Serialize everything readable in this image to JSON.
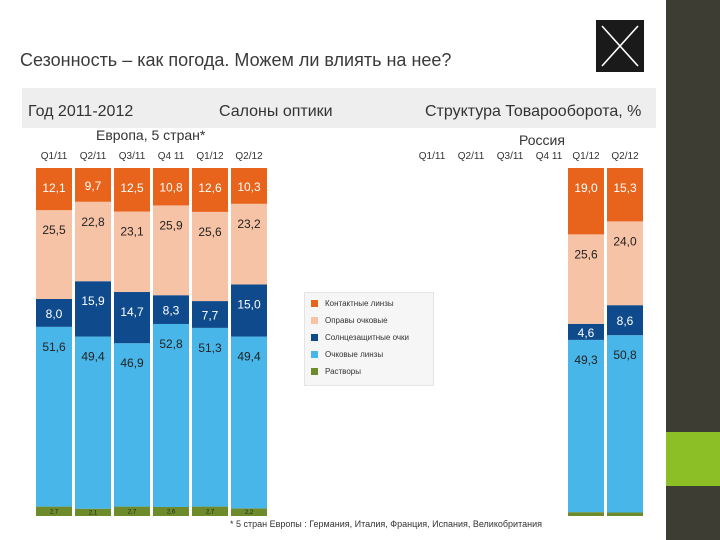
{
  "title": "Сезонность – как погода. Можем ли влиять на нее?",
  "header": {
    "left": "Год 2011-2012",
    "center": "Салоны оптики",
    "right": "Структура Товарооборота, %"
  },
  "colors": {
    "contact": "#e8641c",
    "frames": "#f7c3a6",
    "sun": "#0f4b8c",
    "lenses": "#49b6ea",
    "solutions": "#6d8b2a",
    "side_bar": "#3d3d33",
    "accent": "#8cbf26"
  },
  "legend": [
    {
      "key": "contact",
      "label": "Контактные линзы"
    },
    {
      "key": "frames",
      "label": "Оправы очковые"
    },
    {
      "key": "sun",
      "label": "Солнцезащитные очки"
    },
    {
      "key": "lenses",
      "label": "Очковые линзы"
    },
    {
      "key": "solutions",
      "label": "Растворы"
    }
  ],
  "footnote": "* 5 стран Европы : Германия, Италия, Франция, Испания, Великобритания",
  "chart_data": [
    {
      "type": "bar",
      "stacked": true,
      "title": "Европа, 5 стран*",
      "categories": [
        "Q1/11",
        "Q2/11",
        "Q3/11",
        "Q4 11",
        "Q1/12",
        "Q2/12"
      ],
      "series": [
        {
          "name": "Растворы",
          "key": "solutions",
          "values": [
            2.7,
            2.1,
            2.7,
            2.6,
            2.7,
            2.2
          ],
          "labels": [
            "2,7",
            "2,1",
            "2,7",
            "2,6",
            "2,7",
            "2,2"
          ]
        },
        {
          "name": "Очковые линзы",
          "key": "lenses",
          "values": [
            51.6,
            49.4,
            46.9,
            52.8,
            51.3,
            49.4
          ],
          "labels": [
            "51,6",
            "49,4",
            "46,9",
            "52,8",
            "51,3",
            "49,4"
          ]
        },
        {
          "name": "Солнцезащитные очки",
          "key": "sun",
          "values": [
            8.0,
            15.9,
            14.7,
            8.3,
            7.7,
            15.0
          ],
          "labels": [
            "8,0",
            "15,9",
            "14,7",
            "8,3",
            "7,7",
            "15,0"
          ]
        },
        {
          "name": "Оправы очковые",
          "key": "frames",
          "values": [
            25.5,
            22.8,
            23.1,
            25.9,
            25.6,
            23.2
          ],
          "labels": [
            "25,5",
            "22,8",
            "23,1",
            "25,9",
            "25,6",
            "23,2"
          ]
        },
        {
          "name": "Контактные линзы",
          "key": "contact",
          "values": [
            12.1,
            9.7,
            12.5,
            10.8,
            12.6,
            10.3
          ],
          "labels": [
            "12,1",
            "9,7",
            "12,5",
            "10,8",
            "12,6",
            "10,3"
          ]
        }
      ],
      "ylim": [
        0,
        100
      ]
    },
    {
      "type": "bar",
      "stacked": true,
      "title": "Россия",
      "categories": [
        "Q1/11",
        "Q2/11",
        "Q3/11",
        "Q4 11",
        "Q1/12",
        "Q2/12"
      ],
      "series": [
        {
          "name": "Растворы",
          "key": "solutions",
          "values": [
            null,
            null,
            null,
            null,
            1.1,
            1.0
          ],
          "labels": [
            "",
            "",
            "",
            "",
            "",
            ""
          ]
        },
        {
          "name": "Очковые линзы",
          "key": "lenses",
          "values": [
            null,
            null,
            null,
            null,
            49.3,
            50.8
          ],
          "labels": [
            "",
            "",
            "",
            "",
            "49,3",
            "50,8"
          ]
        },
        {
          "name": "Солнцезащитные очки",
          "key": "sun",
          "values": [
            null,
            null,
            null,
            null,
            4.6,
            8.6
          ],
          "labels": [
            "",
            "",
            "",
            "",
            "4,6",
            "8,6"
          ]
        },
        {
          "name": "Оправы очковые",
          "key": "frames",
          "values": [
            null,
            null,
            null,
            null,
            25.6,
            24.0
          ],
          "labels": [
            "",
            "",
            "",
            "",
            "25,6",
            "24,0"
          ]
        },
        {
          "name": "Контактные линзы",
          "key": "contact",
          "values": [
            null,
            null,
            null,
            null,
            19.0,
            15.3
          ],
          "labels": [
            "",
            "",
            "",
            "",
            "19,0",
            "15,3"
          ]
        }
      ],
      "ylim": [
        0,
        100
      ]
    }
  ]
}
